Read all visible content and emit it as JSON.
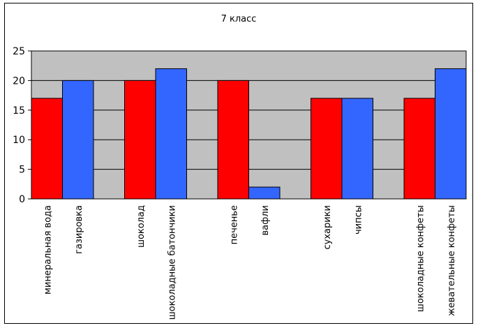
{
  "chart_data": {
    "type": "bar",
    "title": "7 класс",
    "xlabel": "",
    "ylabel": "",
    "ylim": [
      0,
      25
    ],
    "yticks": [
      0,
      5,
      10,
      15,
      20,
      25
    ],
    "grid": true,
    "legend": "none",
    "plot_background": "#c0c0c0",
    "categories": [
      {
        "label": "минеральная вода",
        "value": 17,
        "color": "#ff0000"
      },
      {
        "label": "газировка",
        "value": 20,
        "color": "#3366ff"
      },
      {
        "label": "",
        "value": null,
        "color": ""
      },
      {
        "label": "шоколад",
        "value": 20,
        "color": "#ff0000"
      },
      {
        "label": "шоколадные батончики",
        "value": 22,
        "color": "#3366ff"
      },
      {
        "label": "",
        "value": null,
        "color": ""
      },
      {
        "label": "печенье",
        "value": 20,
        "color": "#ff0000"
      },
      {
        "label": "вафли",
        "value": 2,
        "color": "#3366ff"
      },
      {
        "label": "",
        "value": null,
        "color": ""
      },
      {
        "label": "сухарики",
        "value": 17,
        "color": "#ff0000"
      },
      {
        "label": "чипсы",
        "value": 17,
        "color": "#3366ff"
      },
      {
        "label": "",
        "value": null,
        "color": ""
      },
      {
        "label": "шоколадные конфеты",
        "value": 17,
        "color": "#ff0000"
      },
      {
        "label": "жевательные конфеты",
        "value": 22,
        "color": "#3366ff"
      }
    ]
  }
}
